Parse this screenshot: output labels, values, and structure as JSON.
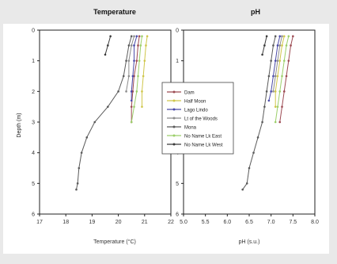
{
  "colors": {
    "Dam": "#9c4a52",
    "Half Moon": "#cfc64a",
    "Lago Lindo": "#4a4aa8",
    "Lt of the Woods": "#8c8c8c",
    "Mona": "#5a5a5a",
    "No Name Lk East": "#9ccf6a",
    "No Name Lk West": "#3a3a3a"
  },
  "chart_data": [
    {
      "type": "line",
      "title": "Temperature",
      "xlabel": "Temperature (°C)",
      "ylabel": "Depth (m)",
      "xlim": [
        17,
        22
      ],
      "ylim": [
        0,
        6
      ],
      "y_inverted": true,
      "x_ticks": [
        "17",
        "18",
        "19",
        "20",
        "21",
        "22"
      ],
      "y_ticks": [
        "0",
        "1",
        "2",
        "3",
        "4",
        "5",
        "6"
      ],
      "legend_position": "center",
      "series": [
        {
          "name": "Dam",
          "x": [
            20.8,
            20.75,
            20.7,
            20.6,
            20.55,
            20.5,
            20.5
          ],
          "y": [
            0.2,
            0.5,
            1.0,
            1.5,
            2.0,
            2.5,
            3.0
          ]
        },
        {
          "name": "Half Moon",
          "x": [
            21.1,
            21.05,
            21.0,
            20.95,
            20.9,
            20.9
          ],
          "y": [
            0.2,
            0.5,
            1.0,
            1.5,
            2.0,
            2.5
          ]
        },
        {
          "name": "Lago Lindo",
          "x": [
            20.7,
            20.6,
            20.6,
            20.55,
            20.5,
            20.5
          ],
          "y": [
            0.2,
            0.5,
            1.0,
            1.5,
            2.0,
            2.3
          ]
        },
        {
          "name": "Lt of the Woods",
          "x": [
            20.6,
            20.5,
            20.4,
            20.4,
            20.3
          ],
          "y": [
            0.2,
            0.5,
            1.0,
            1.5,
            2.0
          ]
        },
        {
          "name": "Mona",
          "x": [
            20.5,
            20.4,
            20.3,
            20.2,
            20.0,
            19.6,
            19.1,
            18.8,
            18.6,
            18.5,
            18.45,
            18.4
          ],
          "y": [
            0.2,
            0.5,
            1.0,
            1.5,
            2.0,
            2.5,
            3.0,
            3.5,
            4.0,
            4.5,
            5.0,
            5.2
          ]
        },
        {
          "name": "No Name Lk East",
          "x": [
            20.9,
            20.85,
            20.8,
            20.75,
            20.7,
            20.6,
            20.5
          ],
          "y": [
            0.2,
            0.5,
            1.0,
            1.5,
            2.0,
            2.5,
            3.0
          ]
        },
        {
          "name": "No Name Lk West",
          "x": [
            19.7,
            19.6,
            19.5
          ],
          "y": [
            0.2,
            0.5,
            0.8
          ]
        }
      ]
    },
    {
      "type": "line",
      "title": "pH",
      "xlabel": "pH (s.u.)",
      "ylabel": "",
      "xlim": [
        5.0,
        8.0
      ],
      "ylim": [
        0,
        6
      ],
      "y_inverted": true,
      "x_ticks": [
        "5.0",
        "5.5",
        "6.0",
        "6.5",
        "7.0",
        "7.5",
        "8.0"
      ],
      "series": [
        {
          "name": "Dam",
          "x": [
            7.5,
            7.45,
            7.4,
            7.35,
            7.3,
            7.25,
            7.2
          ],
          "y": [
            0.2,
            0.5,
            1.0,
            1.5,
            2.0,
            2.5,
            3.0
          ]
        },
        {
          "name": "Half Moon",
          "x": [
            7.3,
            7.25,
            7.2,
            7.15,
            7.1,
            7.1
          ],
          "y": [
            0.2,
            0.5,
            1.0,
            1.5,
            2.0,
            2.5
          ]
        },
        {
          "name": "Lago Lindo",
          "x": [
            7.2,
            7.15,
            7.1,
            7.05,
            7.0,
            6.95
          ],
          "y": [
            0.2,
            0.5,
            1.0,
            1.5,
            2.0,
            2.3
          ]
        },
        {
          "name": "Lt of the Woods",
          "x": [
            7.25,
            7.2,
            7.15,
            7.1,
            7.05
          ],
          "y": [
            0.2,
            0.5,
            1.0,
            1.5,
            2.0
          ]
        },
        {
          "name": "Mona",
          "x": [
            7.1,
            7.05,
            7.0,
            6.95,
            6.9,
            6.85,
            6.8,
            6.7,
            6.6,
            6.5,
            6.45,
            6.35
          ],
          "y": [
            0.2,
            0.5,
            1.0,
            1.5,
            2.0,
            2.5,
            3.0,
            3.5,
            4.0,
            4.5,
            5.0,
            5.2
          ]
        },
        {
          "name": "No Name Lk East",
          "x": [
            7.4,
            7.35,
            7.3,
            7.25,
            7.2,
            7.15,
            7.1
          ],
          "y": [
            0.2,
            0.5,
            1.0,
            1.5,
            2.0,
            2.5,
            3.0
          ]
        },
        {
          "name": "No Name Lk West",
          "x": [
            6.9,
            6.85,
            6.8
          ],
          "y": [
            0.2,
            0.5,
            0.8
          ]
        }
      ]
    }
  ],
  "legend": {
    "entries": [
      "Dam",
      "Half Moon",
      "Lago Lindo",
      "Lt of the Woods",
      "Mona",
      "No Name Lk East",
      "No Name Lk West"
    ]
  }
}
